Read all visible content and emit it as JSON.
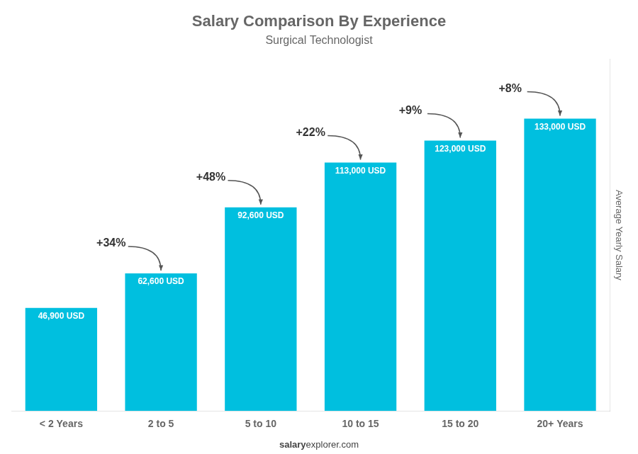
{
  "chart_data": {
    "type": "bar",
    "title": "Salary Comparison By Experience",
    "subtitle": "Surgical Technologist",
    "ylabel": "Average Yearly Salary",
    "categories": [
      "< 2 Years",
      "2 to 5",
      "5 to 10",
      "10 to 15",
      "15 to 20",
      "20+ Years"
    ],
    "values": [
      46900,
      62600,
      92600,
      113000,
      123000,
      133000
    ],
    "value_labels": [
      "46,900 USD",
      "62,600 USD",
      "92,600 USD",
      "113,000 USD",
      "123,000 USD",
      "133,000 USD"
    ],
    "data_labels": true,
    "annotations": [
      "+34%",
      "+48%",
      "+22%",
      "+9%",
      "+8%"
    ],
    "footer": [
      "salary",
      "explorer.com"
    ],
    "color": "#00BFDF",
    "ylim": [
      0,
      160000
    ],
    "grid": false,
    "tick_labels": "x"
  }
}
